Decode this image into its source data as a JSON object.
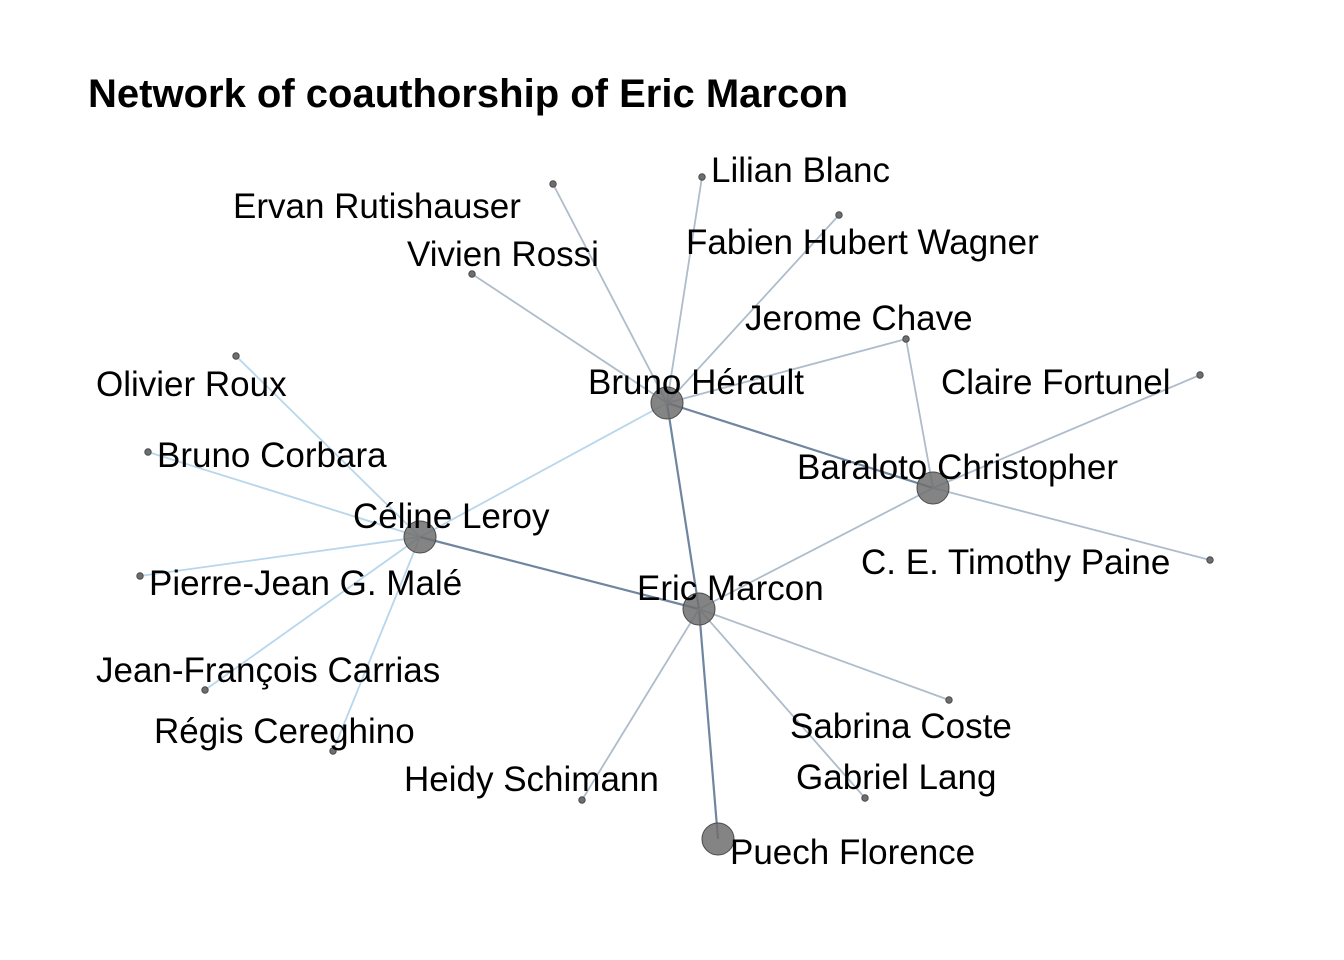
{
  "title": "Network of coauthorship of Eric Marcon",
  "nodes": [
    {
      "id": "bruno_herault",
      "label": "Bruno Hérault",
      "weight": "large"
    },
    {
      "id": "eric_marcon",
      "label": "Eric Marcon",
      "weight": "large"
    },
    {
      "id": "celine_leroy",
      "label": "Céline Leroy",
      "weight": "large"
    },
    {
      "id": "baraloto",
      "label": "Baraloto Christopher",
      "weight": "large"
    },
    {
      "id": "puech",
      "label": "Puech Florence",
      "weight": "large"
    },
    {
      "id": "lilian_blanc",
      "label": "Lilian Blanc",
      "weight": "small"
    },
    {
      "id": "ervan",
      "label": "Ervan Rutishauser",
      "weight": "small"
    },
    {
      "id": "fabien",
      "label": "Fabien Hubert Wagner",
      "weight": "small"
    },
    {
      "id": "vivien",
      "label": "Vivien Rossi",
      "weight": "small"
    },
    {
      "id": "jerome",
      "label": "Jerome Chave",
      "weight": "small"
    },
    {
      "id": "olivier",
      "label": "Olivier Roux",
      "weight": "small"
    },
    {
      "id": "claire",
      "label": "Claire Fortunel",
      "weight": "small"
    },
    {
      "id": "corbara",
      "label": "Bruno Corbara",
      "weight": "small"
    },
    {
      "id": "paine",
      "label": "C. E. Timothy Paine",
      "weight": "small"
    },
    {
      "id": "male",
      "label": "Pierre-Jean G. Malé",
      "weight": "small"
    },
    {
      "id": "carrias",
      "label": "Jean-François Carrias",
      "weight": "small"
    },
    {
      "id": "coste",
      "label": "Sabrina Coste",
      "weight": "small"
    },
    {
      "id": "cereghino",
      "label": "Régis Cereghino",
      "weight": "small"
    },
    {
      "id": "schimann",
      "label": "Heidy Schimann",
      "weight": "small"
    },
    {
      "id": "lang",
      "label": "Gabriel Lang",
      "weight": "small"
    }
  ],
  "edges": [
    {
      "from": "bruno_herault",
      "to": "eric_marcon",
      "strength": "strong"
    },
    {
      "from": "bruno_herault",
      "to": "baraloto",
      "strength": "strong"
    },
    {
      "from": "bruno_herault",
      "to": "celine_leroy",
      "strength": "weak"
    },
    {
      "from": "bruno_herault",
      "to": "lilian_blanc",
      "strength": "medium"
    },
    {
      "from": "bruno_herault",
      "to": "ervan",
      "strength": "medium"
    },
    {
      "from": "bruno_herault",
      "to": "fabien",
      "strength": "medium"
    },
    {
      "from": "bruno_herault",
      "to": "vivien",
      "strength": "medium"
    },
    {
      "from": "bruno_herault",
      "to": "jerome",
      "strength": "medium"
    },
    {
      "from": "jerome",
      "to": "baraloto",
      "strength": "medium"
    },
    {
      "from": "baraloto",
      "to": "claire",
      "strength": "medium"
    },
    {
      "from": "baraloto",
      "to": "paine",
      "strength": "medium"
    },
    {
      "from": "baraloto",
      "to": "eric_marcon",
      "strength": "medium"
    },
    {
      "from": "celine_leroy",
      "to": "eric_marcon",
      "strength": "strong"
    },
    {
      "from": "celine_leroy",
      "to": "olivier",
      "strength": "weak"
    },
    {
      "from": "celine_leroy",
      "to": "corbara",
      "strength": "weak"
    },
    {
      "from": "celine_leroy",
      "to": "male",
      "strength": "weak"
    },
    {
      "from": "celine_leroy",
      "to": "carrias",
      "strength": "weak"
    },
    {
      "from": "celine_leroy",
      "to": "cereghino",
      "strength": "weak"
    },
    {
      "from": "eric_marcon",
      "to": "puech",
      "strength": "strong"
    },
    {
      "from": "eric_marcon",
      "to": "coste",
      "strength": "medium"
    },
    {
      "from": "eric_marcon",
      "to": "lang",
      "strength": "medium"
    },
    {
      "from": "eric_marcon",
      "to": "schimann",
      "strength": "medium"
    }
  ],
  "colors": {
    "edge_strong": "#6f85a0",
    "edge_medium": "#aebccb",
    "edge_weak": "#b8d6ec",
    "node_fill": "#6e6e6e",
    "node_stroke": "#4a4a4a"
  }
}
